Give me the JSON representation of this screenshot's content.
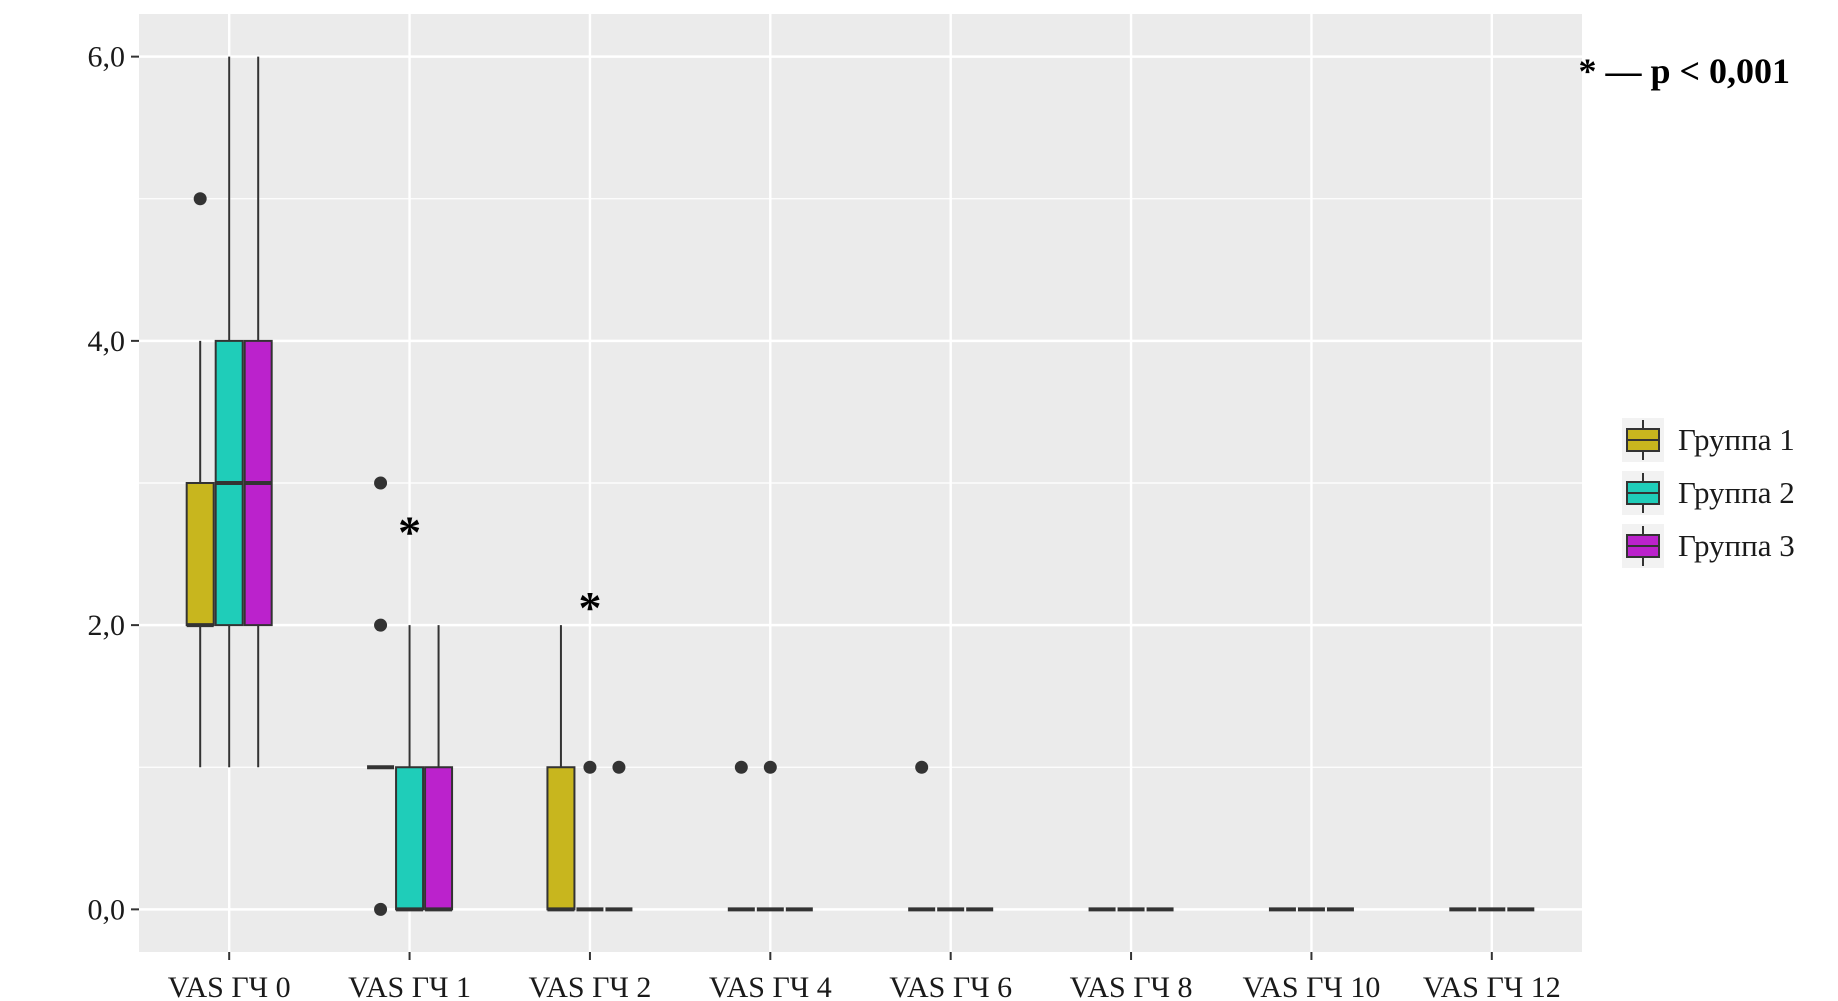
{
  "chart_data": {
    "type": "boxplot",
    "categories": [
      "VAS ГЧ 0",
      "VAS ГЧ 1",
      "VAS ГЧ 2",
      "VAS ГЧ 4",
      "VAS ГЧ 6",
      "VAS ГЧ 8",
      "VAS ГЧ 10",
      "VAS ГЧ 12"
    ],
    "y_ticks": [
      0,
      2,
      4,
      6
    ],
    "y_tick_labels": [
      "0,0",
      "2,0",
      "4,0",
      "6,0"
    ],
    "ylim": [
      -0.3,
      6.3
    ],
    "grid": true,
    "legend_placement": "right",
    "note": "* — p < 0,001",
    "significance_marks": [
      {
        "category": "VAS ГЧ 1",
        "y": 2.7,
        "text": "*"
      },
      {
        "category": "VAS ГЧ 2",
        "y": 2.17,
        "text": "*"
      }
    ],
    "series": [
      {
        "name": "Группа 1",
        "color": "#c8b61e",
        "boxes": [
          {
            "lower": 1,
            "q1": 2,
            "median": 2,
            "q3": 3,
            "upper": 4,
            "outliers": [
              5
            ]
          },
          {
            "lower": 1,
            "q1": 1,
            "median": 1,
            "q3": 1,
            "upper": 1,
            "outliers": [
              0,
              2,
              3
            ]
          },
          {
            "lower": 0,
            "q1": 0,
            "median": 0,
            "q3": 1,
            "upper": 2,
            "outliers": []
          },
          {
            "lower": 0,
            "q1": 0,
            "median": 0,
            "q3": 0,
            "upper": 0,
            "outliers": [
              1
            ]
          },
          {
            "lower": 0,
            "q1": 0,
            "median": 0,
            "q3": 0,
            "upper": 0,
            "outliers": [
              1
            ]
          },
          {
            "lower": 0,
            "q1": 0,
            "median": 0,
            "q3": 0,
            "upper": 0,
            "outliers": []
          },
          {
            "lower": 0,
            "q1": 0,
            "median": 0,
            "q3": 0,
            "upper": 0,
            "outliers": []
          },
          {
            "lower": 0,
            "q1": 0,
            "median": 0,
            "q3": 0,
            "upper": 0,
            "outliers": []
          }
        ]
      },
      {
        "name": "Группа 2",
        "color": "#1fcdb9",
        "boxes": [
          {
            "lower": 1,
            "q1": 2,
            "median": 3,
            "q3": 4,
            "upper": 6,
            "outliers": []
          },
          {
            "lower": 0,
            "q1": 0,
            "median": 0,
            "q3": 1,
            "upper": 2,
            "outliers": []
          },
          {
            "lower": 0,
            "q1": 0,
            "median": 0,
            "q3": 0,
            "upper": 0,
            "outliers": [
              1
            ]
          },
          {
            "lower": 0,
            "q1": 0,
            "median": 0,
            "q3": 0,
            "upper": 0,
            "outliers": [
              1
            ]
          },
          {
            "lower": 0,
            "q1": 0,
            "median": 0,
            "q3": 0,
            "upper": 0,
            "outliers": []
          },
          {
            "lower": 0,
            "q1": 0,
            "median": 0,
            "q3": 0,
            "upper": 0,
            "outliers": []
          },
          {
            "lower": 0,
            "q1": 0,
            "median": 0,
            "q3": 0,
            "upper": 0,
            "outliers": []
          },
          {
            "lower": 0,
            "q1": 0,
            "median": 0,
            "q3": 0,
            "upper": 0,
            "outliers": []
          }
        ]
      },
      {
        "name": "Группа 3",
        "color": "#bb22cc",
        "boxes": [
          {
            "lower": 1,
            "q1": 2,
            "median": 3,
            "q3": 4,
            "upper": 6,
            "outliers": []
          },
          {
            "lower": 0,
            "q1": 0,
            "median": 0,
            "q3": 1,
            "upper": 2,
            "outliers": []
          },
          {
            "lower": 0,
            "q1": 0,
            "median": 0,
            "q3": 0,
            "upper": 0,
            "outliers": [
              1
            ]
          },
          {
            "lower": 0,
            "q1": 0,
            "median": 0,
            "q3": 0,
            "upper": 0,
            "outliers": []
          },
          {
            "lower": 0,
            "q1": 0,
            "median": 0,
            "q3": 0,
            "upper": 0,
            "outliers": []
          },
          {
            "lower": 0,
            "q1": 0,
            "median": 0,
            "q3": 0,
            "upper": 0,
            "outliers": []
          },
          {
            "lower": 0,
            "q1": 0,
            "median": 0,
            "q3": 0,
            "upper": 0,
            "outliers": []
          },
          {
            "lower": 0,
            "q1": 0,
            "median": 0,
            "q3": 0,
            "upper": 0,
            "outliers": []
          }
        ]
      }
    ]
  }
}
